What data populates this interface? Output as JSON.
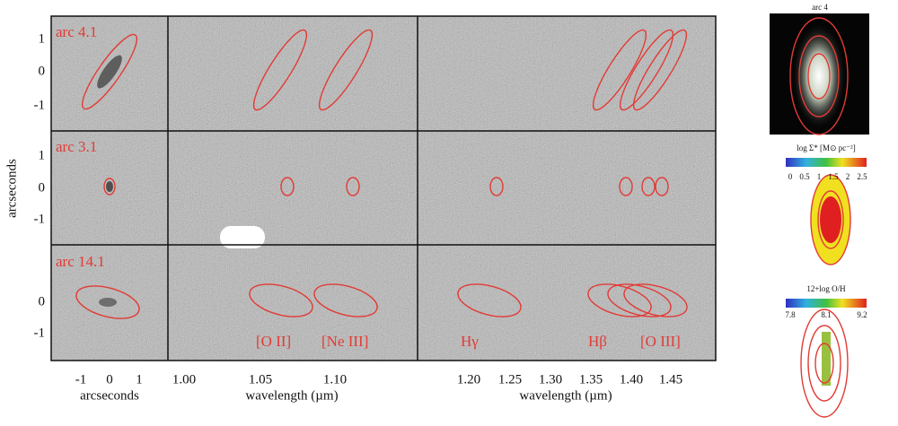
{
  "figure": {
    "arc_labels": [
      "arc 4.1",
      "arc 3.1",
      "arc 14.1"
    ],
    "y_axis_title": "arcseconds",
    "y_ticks": [
      [
        "1",
        "0",
        "-1"
      ],
      [
        "1",
        "0",
        "-1"
      ],
      [
        "0",
        "-1"
      ]
    ],
    "x_axes": [
      {
        "title": "arcseconds",
        "ticks": [
          "-1",
          "0",
          "1"
        ]
      },
      {
        "title": "wavelength (µm)",
        "ticks": [
          "1.00",
          "1.05",
          "1.10"
        ]
      },
      {
        "title": "wavelength (µm)",
        "ticks": [
          "1.20",
          "1.25",
          "1.30",
          "1.35",
          "1.40",
          "1.45"
        ]
      }
    ],
    "line_labels": [
      "[O II]",
      "[Ne III]",
      "Hγ",
      "Hβ",
      "[O III]"
    ],
    "side": {
      "image_label": "arc 4",
      "mass_title": "log Σ* [M⊙ pc⁻²]",
      "mass_ticks": [
        "0",
        "0.5",
        "1",
        "1.5",
        "2",
        "2.5"
      ],
      "metal_title": "12+log O/H",
      "metal_ticks": [
        "7.8",
        "8.1",
        "9.2"
      ]
    }
  }
}
